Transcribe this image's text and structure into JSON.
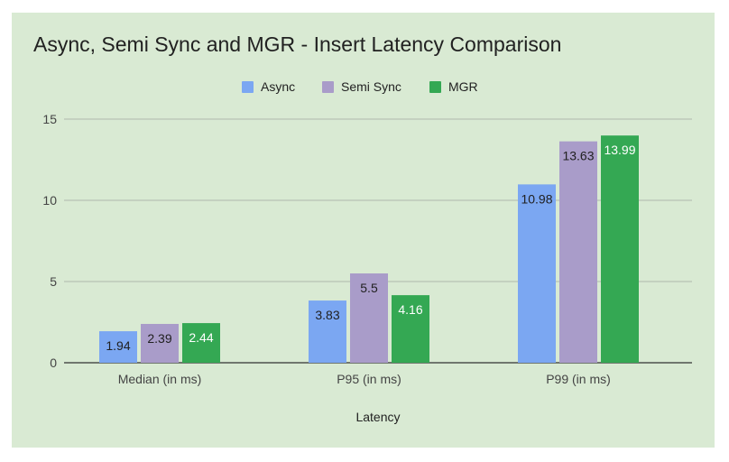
{
  "chart_data": {
    "type": "bar",
    "title": "Async, Semi Sync and MGR - Insert Latency Comparison",
    "xlabel": "Latency",
    "ylabel": "",
    "categories": [
      "Median (in ms)",
      "P95 (in ms)",
      "P99 (in ms)"
    ],
    "series": [
      {
        "name": "Async",
        "values": [
          1.94,
          3.83,
          10.98
        ],
        "color": "#7ba7f2",
        "label_color": "#212121"
      },
      {
        "name": "Semi Sync",
        "values": [
          2.39,
          5.5,
          13.63
        ],
        "color": "#a99cc9",
        "label_color": "#212121"
      },
      {
        "name": "MGR",
        "values": [
          2.44,
          4.16,
          13.99
        ],
        "color": "#34a853",
        "label_color": "#ffffff"
      }
    ],
    "ylim": [
      0,
      15
    ],
    "yticks": [
      0,
      5,
      10,
      15
    ],
    "grid": true,
    "legend": "top-center",
    "background": "#d9ead3",
    "gridline_color": "#b0b8ad"
  }
}
